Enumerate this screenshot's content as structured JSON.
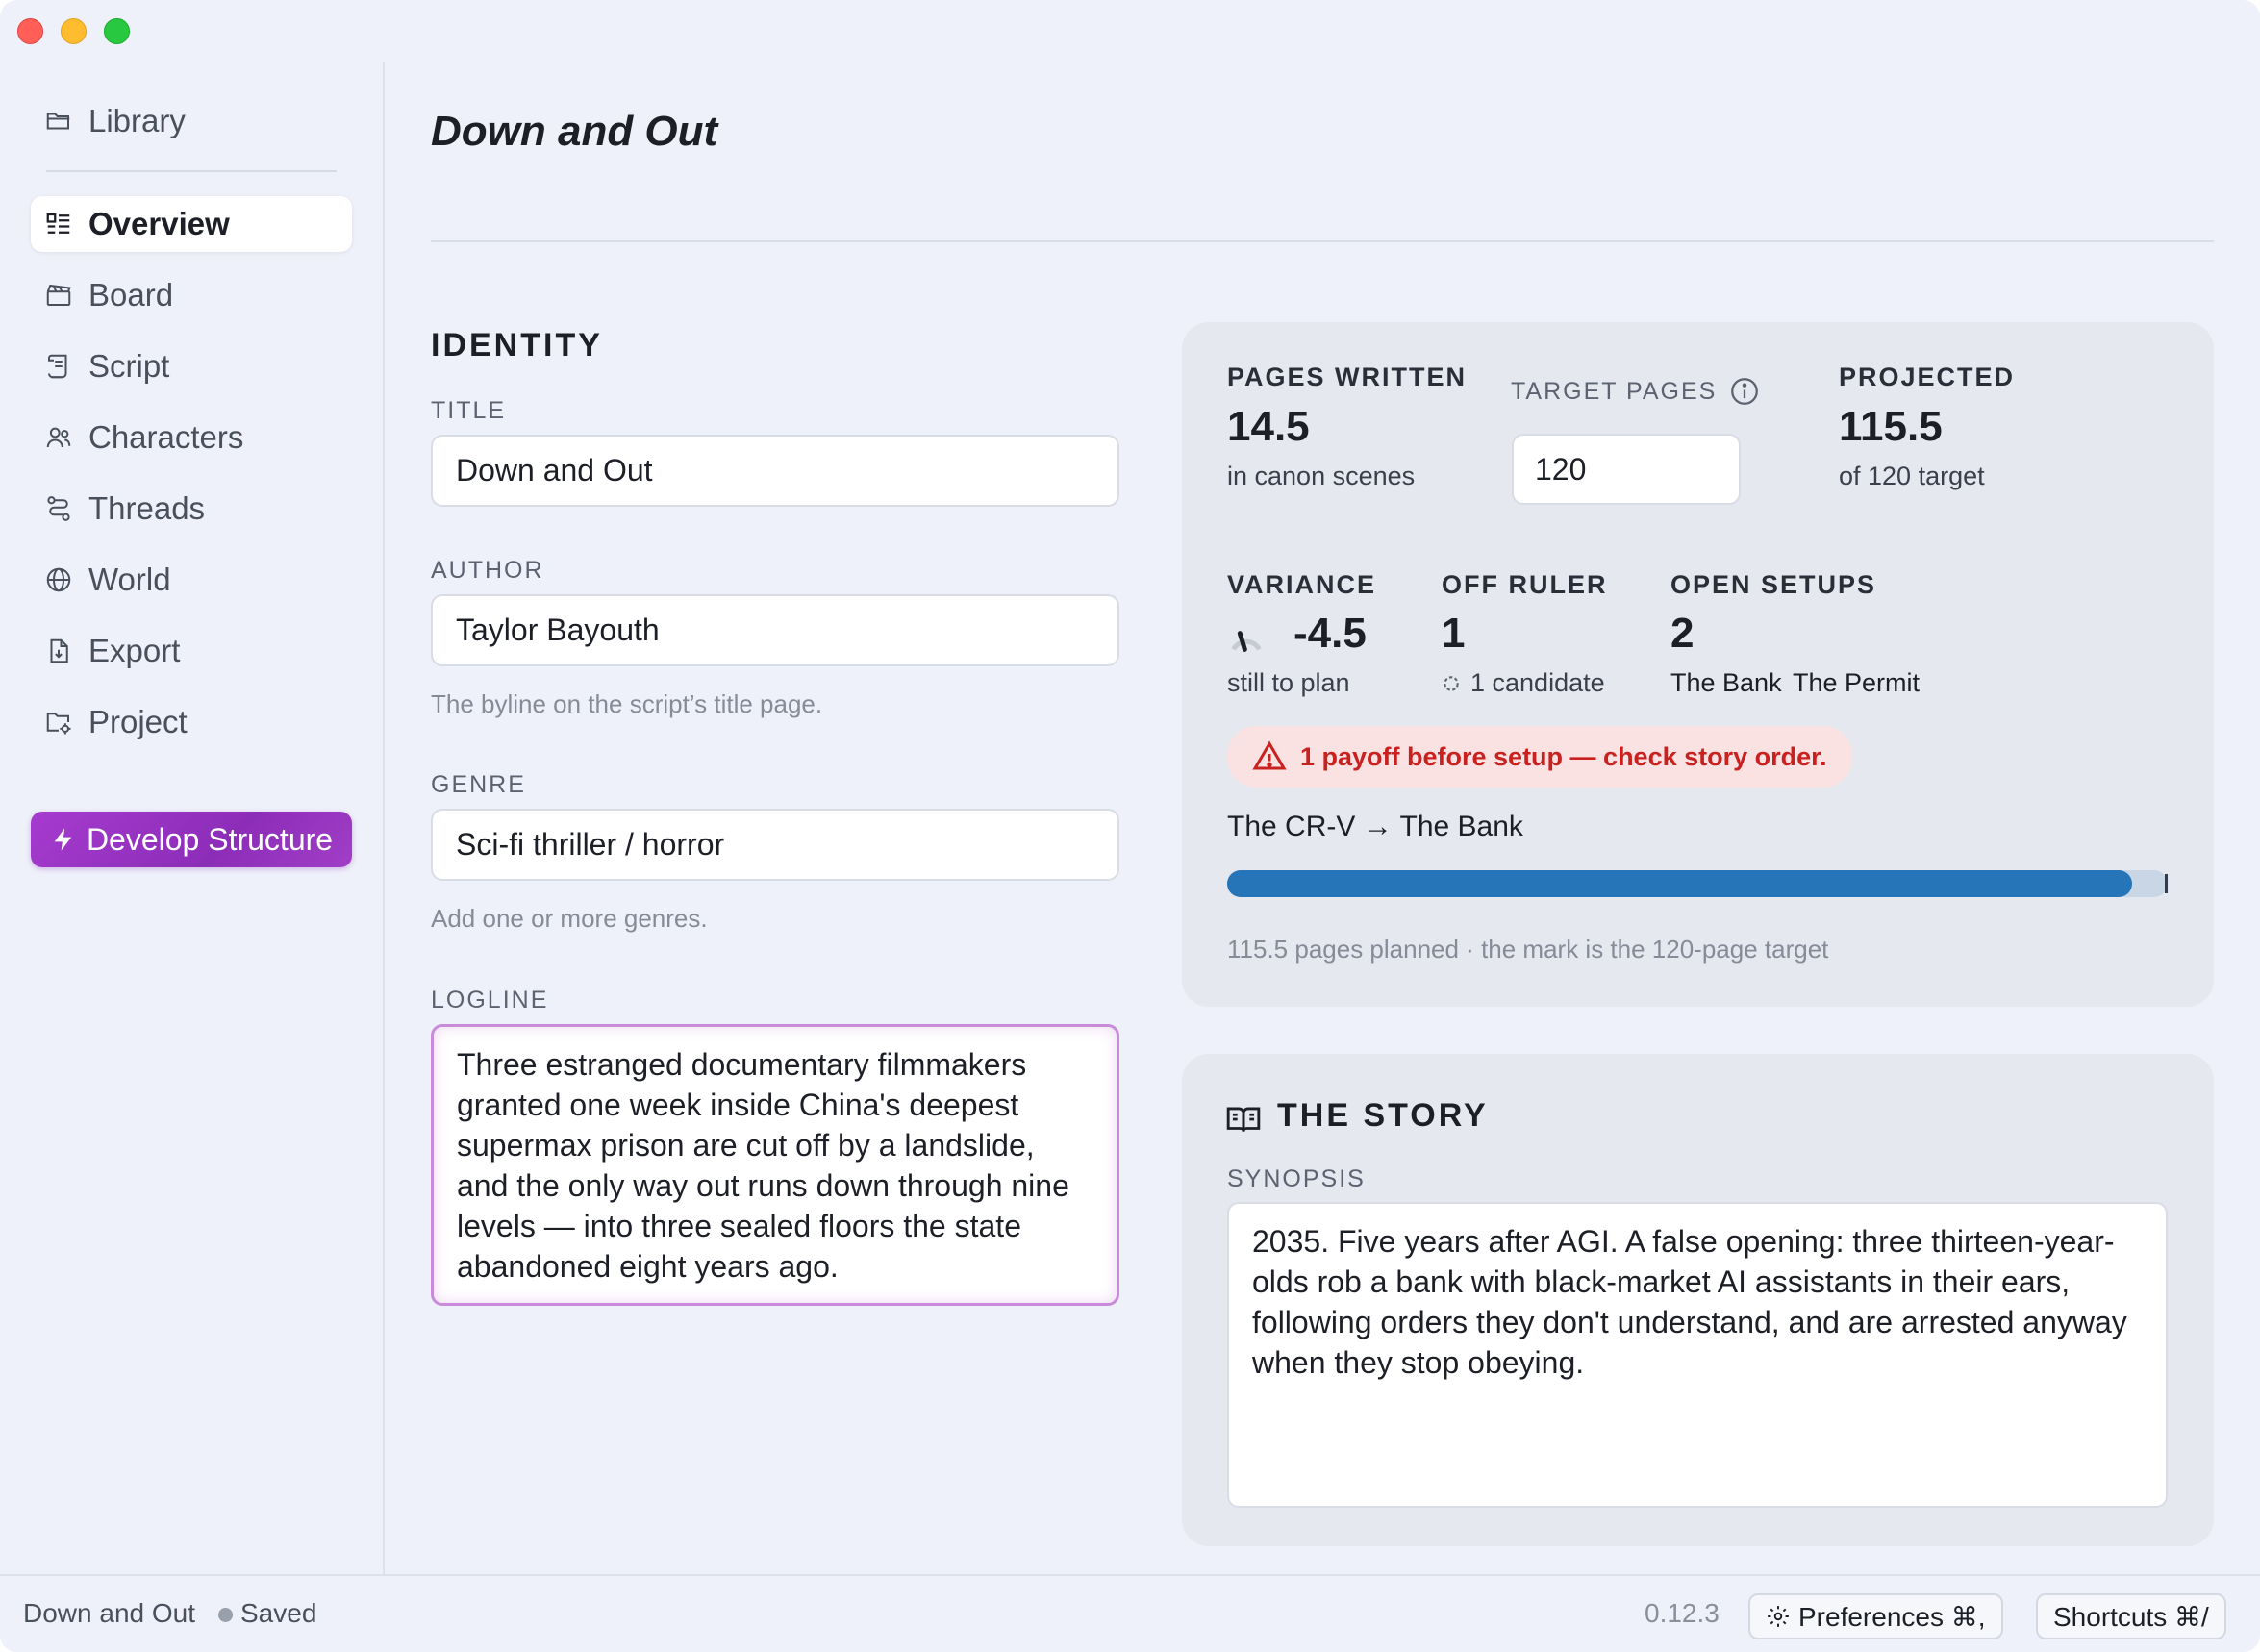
{
  "sidebar": {
    "items": [
      {
        "label": "Library",
        "icon": "folder-open-icon"
      },
      {
        "label": "Overview",
        "icon": "list-icon"
      },
      {
        "label": "Board",
        "icon": "clapperboard-icon"
      },
      {
        "label": "Script",
        "icon": "scroll-icon"
      },
      {
        "label": "Characters",
        "icon": "users-icon"
      },
      {
        "label": "Threads",
        "icon": "route-icon"
      },
      {
        "label": "World",
        "icon": "globe-icon"
      },
      {
        "label": "Export",
        "icon": "file-download-icon"
      },
      {
        "label": "Project",
        "icon": "folder-settings-icon"
      }
    ],
    "active": "Overview",
    "develop_button": "Develop Structure"
  },
  "main": {
    "page_title": "Down and Out",
    "identity": {
      "heading": "IDENTITY",
      "title_label": "TITLE",
      "title_value": "Down and Out",
      "author_label": "AUTHOR",
      "author_value": "Taylor Bayouth",
      "author_hint": "The byline on the script’s title page.",
      "genre_label": "GENRE",
      "genre_value": "Sci-fi thriller / horror",
      "genre_hint": "Add one or more genres.",
      "logline_label": "LOGLINE",
      "logline_value": "Three estranged documentary filmmakers granted one week inside China's deepest supermax prison are cut off by a landslide, and the only way out runs down through nine levels — into three sealed floors the state abandoned eight years ago."
    },
    "stats": {
      "pages_written_label": "PAGES WRITTEN",
      "pages_written_value": "14.5",
      "pages_written_sub": "in canon scenes",
      "target_pages_label": "TARGET PAGES",
      "target_pages_value": "120",
      "projected_label": "PROJECTED",
      "projected_value": "115.5",
      "projected_sub": "of 120 target",
      "variance_label": "VARIANCE",
      "variance_value": "-4.5",
      "variance_sub": "still to plan",
      "off_ruler_label": "OFF RULER",
      "off_ruler_value": "1",
      "off_ruler_sub": "1 candidate",
      "open_setups_label": "OPEN SETUPS",
      "open_setups_value": "2",
      "open_setups_items": [
        "The Bank",
        "The Permit"
      ],
      "alert_text": "1 payoff before setup — check story order.",
      "payoff_link": "The CR-V → The Bank",
      "progress_fraction": 0.9625,
      "progress_caption": "115.5 pages planned · the mark is the 120-page target"
    },
    "story": {
      "heading": "THE STORY",
      "synopsis_label": "SYNOPSIS",
      "synopsis_value": "2035. Five years after AGI. A false opening: three thirteen-year-olds rob a bank with black-market AI assistants in their ears, following orders they don't understand, and are arrested anyway when they stop obeying."
    }
  },
  "footer": {
    "project_name": "Down and Out",
    "save_status": "Saved",
    "version": "0.12.3",
    "preferences_label": "Preferences ⌘,",
    "shortcuts_label": "Shortcuts ⌘/"
  },
  "colors": {
    "accent_purple": "#a63bcf",
    "progress_blue": "#2675b8",
    "alert_red": "#c8211f",
    "background": "#eef1f9"
  }
}
